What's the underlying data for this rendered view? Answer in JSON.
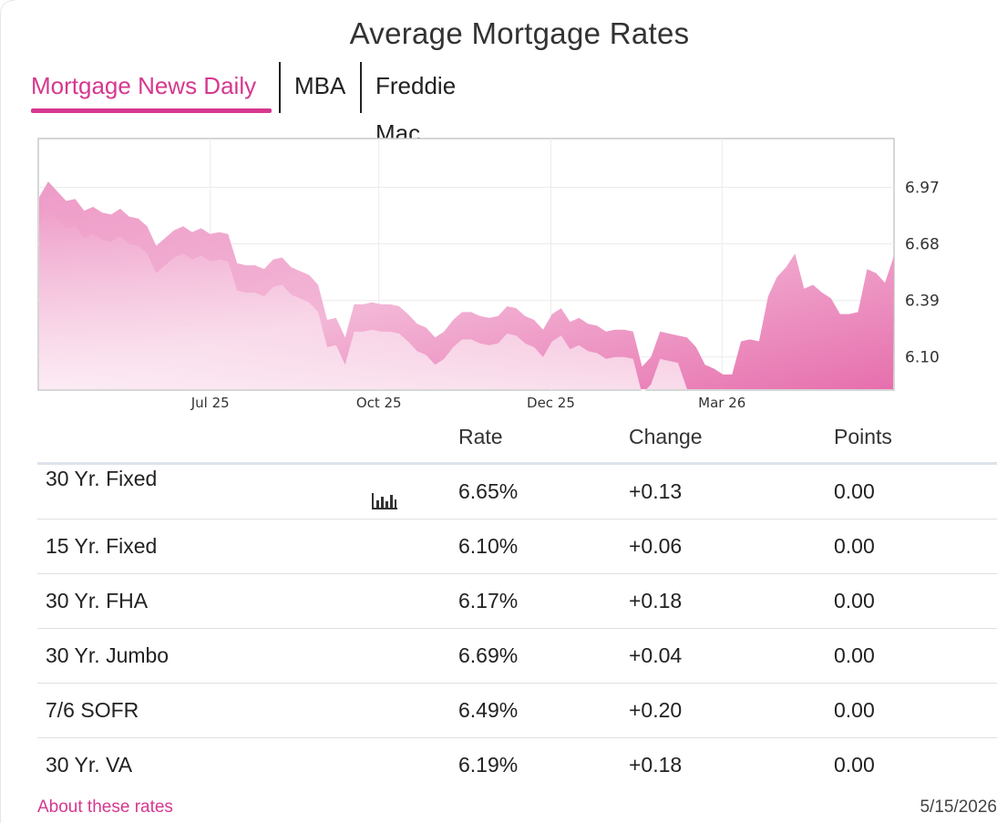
{
  "title": "Average Mortgage Rates",
  "tabs": [
    {
      "label": "Mortgage News Daily",
      "active": true
    },
    {
      "label": "MBA",
      "active": false
    },
    {
      "label": "Freddie Mac",
      "active": false
    }
  ],
  "colors": {
    "accent": "#d6388f",
    "change_up": "#b00000",
    "area_fill_top": "#e06aa8",
    "area_fill_bottom": "#fbe8f2"
  },
  "chart_data": {
    "type": "area",
    "title": "",
    "xlabel": "",
    "ylabel": "",
    "x_ticks": [
      "Jul 25",
      "Oct 25",
      "Dec 25",
      "Mar 26"
    ],
    "y_ticks": [
      "6.97",
      "6.68",
      "6.39",
      "6.10"
    ],
    "ylim": [
      5.93,
      7.22
    ],
    "grid": true,
    "y_axis_side": "right",
    "series": [
      {
        "values": [
          6.92,
          7.0,
          6.95,
          6.9,
          6.91,
          6.85,
          6.87,
          6.84,
          6.83,
          6.86,
          6.82,
          6.81,
          6.77,
          6.67,
          6.71,
          6.75,
          6.77,
          6.74,
          6.76,
          6.73,
          6.74,
          6.73,
          6.58,
          6.57,
          6.57,
          6.55,
          6.6,
          6.61,
          6.56,
          6.54,
          6.52,
          6.47,
          6.29,
          6.3,
          6.2,
          6.37,
          6.37,
          6.38,
          6.37,
          6.37,
          6.36,
          6.32,
          6.27,
          6.25,
          6.2,
          6.23,
          6.29,
          6.33,
          6.33,
          6.31,
          6.3,
          6.31,
          6.36,
          6.35,
          6.31,
          6.29,
          6.24,
          6.32,
          6.35,
          6.28,
          6.3,
          6.27,
          6.26,
          6.23,
          6.24,
          6.24,
          6.23,
          6.05,
          6.1,
          6.23,
          6.22,
          6.21,
          6.2,
          6.15,
          6.06,
          6.04,
          6.01,
          6.01,
          6.18,
          6.19,
          6.18,
          6.41,
          6.51,
          6.56,
          6.63,
          6.45,
          6.47,
          6.43,
          6.4,
          6.32,
          6.32,
          6.33,
          6.55,
          6.53,
          6.48,
          6.62
        ]
      }
    ]
  },
  "table": {
    "headers": {
      "name": "",
      "rate": "Rate",
      "change": "Change",
      "points": "Points"
    },
    "rows": [
      {
        "name": "30 Yr. Fixed",
        "rate": "6.65%",
        "change": "+0.13",
        "points": "0.00",
        "has_chart_icon": true
      },
      {
        "name": "15 Yr. Fixed",
        "rate": "6.10%",
        "change": "+0.06",
        "points": "0.00"
      },
      {
        "name": "30 Yr. FHA",
        "rate": "6.17%",
        "change": "+0.18",
        "points": "0.00"
      },
      {
        "name": "30 Yr. Jumbo",
        "rate": "6.69%",
        "change": "+0.04",
        "points": "0.00"
      },
      {
        "name": "7/6 SOFR",
        "rate": "6.49%",
        "change": "+0.20",
        "points": "0.00"
      },
      {
        "name": "30 Yr. VA",
        "rate": "6.19%",
        "change": "+0.18",
        "points": "0.00"
      }
    ]
  },
  "footer": {
    "link": "About these rates",
    "date": "5/15/2026"
  },
  "icons": {
    "row_chart": "bar-chart-icon"
  }
}
